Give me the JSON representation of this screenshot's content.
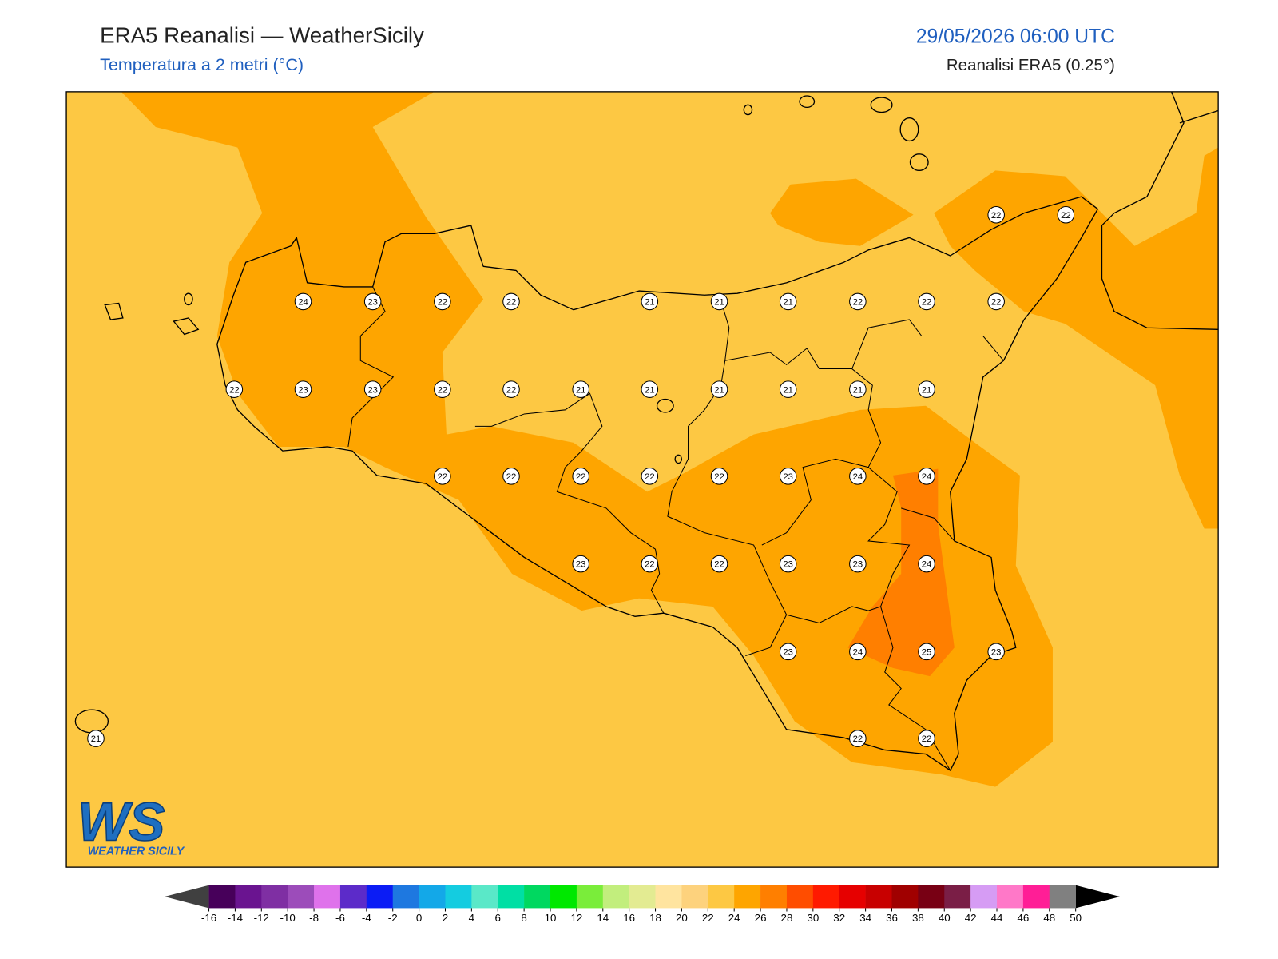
{
  "header": {
    "title": "ERA5 Reanalisi — WeatherSicily",
    "subtitle": "Temperatura a 2 metri (°C)",
    "datetime": "29/05/2026 06:00 UTC",
    "source": "Reanalisi ERA5 (0.25°)"
  },
  "stations": [
    {
      "value": 22
    },
    {
      "value": 22
    },
    {
      "value": 24
    },
    {
      "value": 23
    },
    {
      "value": 22
    },
    {
      "value": 22
    },
    {
      "value": 21
    },
    {
      "value": 21
    },
    {
      "value": 21
    },
    {
      "value": 22
    },
    {
      "value": 22
    },
    {
      "value": 22
    },
    {
      "value": 22
    },
    {
      "value": 23
    },
    {
      "value": 23
    },
    {
      "value": 22
    },
    {
      "value": 22
    },
    {
      "value": 21
    },
    {
      "value": 21
    },
    {
      "value": 21
    },
    {
      "value": 21
    },
    {
      "value": 21
    },
    {
      "value": 21
    },
    {
      "value": 22
    },
    {
      "value": 22
    },
    {
      "value": 22
    },
    {
      "value": 22
    },
    {
      "value": 22
    },
    {
      "value": 23
    },
    {
      "value": 24
    },
    {
      "value": 24
    },
    {
      "value": 23
    },
    {
      "value": 22
    },
    {
      "value": 22
    },
    {
      "value": 23
    },
    {
      "value": 23
    },
    {
      "value": 24
    },
    {
      "value": 23
    },
    {
      "value": 24
    },
    {
      "value": 25
    },
    {
      "value": 23
    },
    {
      "value": 21
    },
    {
      "value": 22
    },
    {
      "value": 22
    }
  ],
  "colorbar": {
    "ticks": [
      -16,
      -14,
      -12,
      -10,
      -8,
      -6,
      -4,
      -2,
      0,
      2,
      4,
      6,
      8,
      10,
      12,
      14,
      16,
      18,
      20,
      22,
      24,
      26,
      28,
      30,
      32,
      34,
      36,
      38,
      40,
      42,
      44,
      46,
      48,
      50
    ],
    "colors": [
      "#47005a",
      "#6a1490",
      "#7f2fa3",
      "#9c4cba",
      "#df72eb",
      "#5c2bc9",
      "#0b1cf5",
      "#1e78e0",
      "#13a8e8",
      "#14cce0",
      "#5ae8c8",
      "#00dfa4",
      "#00d860",
      "#00e800",
      "#7aed3a",
      "#c2ee7d",
      "#e3eb92",
      "#ffe49f",
      "#fdd27d",
      "#fdc843",
      "#fea500",
      "#ff7f00",
      "#ff4d00",
      "#ff1a00",
      "#e60000",
      "#c80000",
      "#a00000",
      "#780014",
      "#7a1e46",
      "#d69cf4",
      "#ff78c8",
      "#ff1e96",
      "#808080",
      "#3c3c3c"
    ],
    "under_color": "#404040",
    "over_color": "#000000"
  },
  "logo": {
    "mark": "WS",
    "name": "WEATHER SICILY"
  }
}
